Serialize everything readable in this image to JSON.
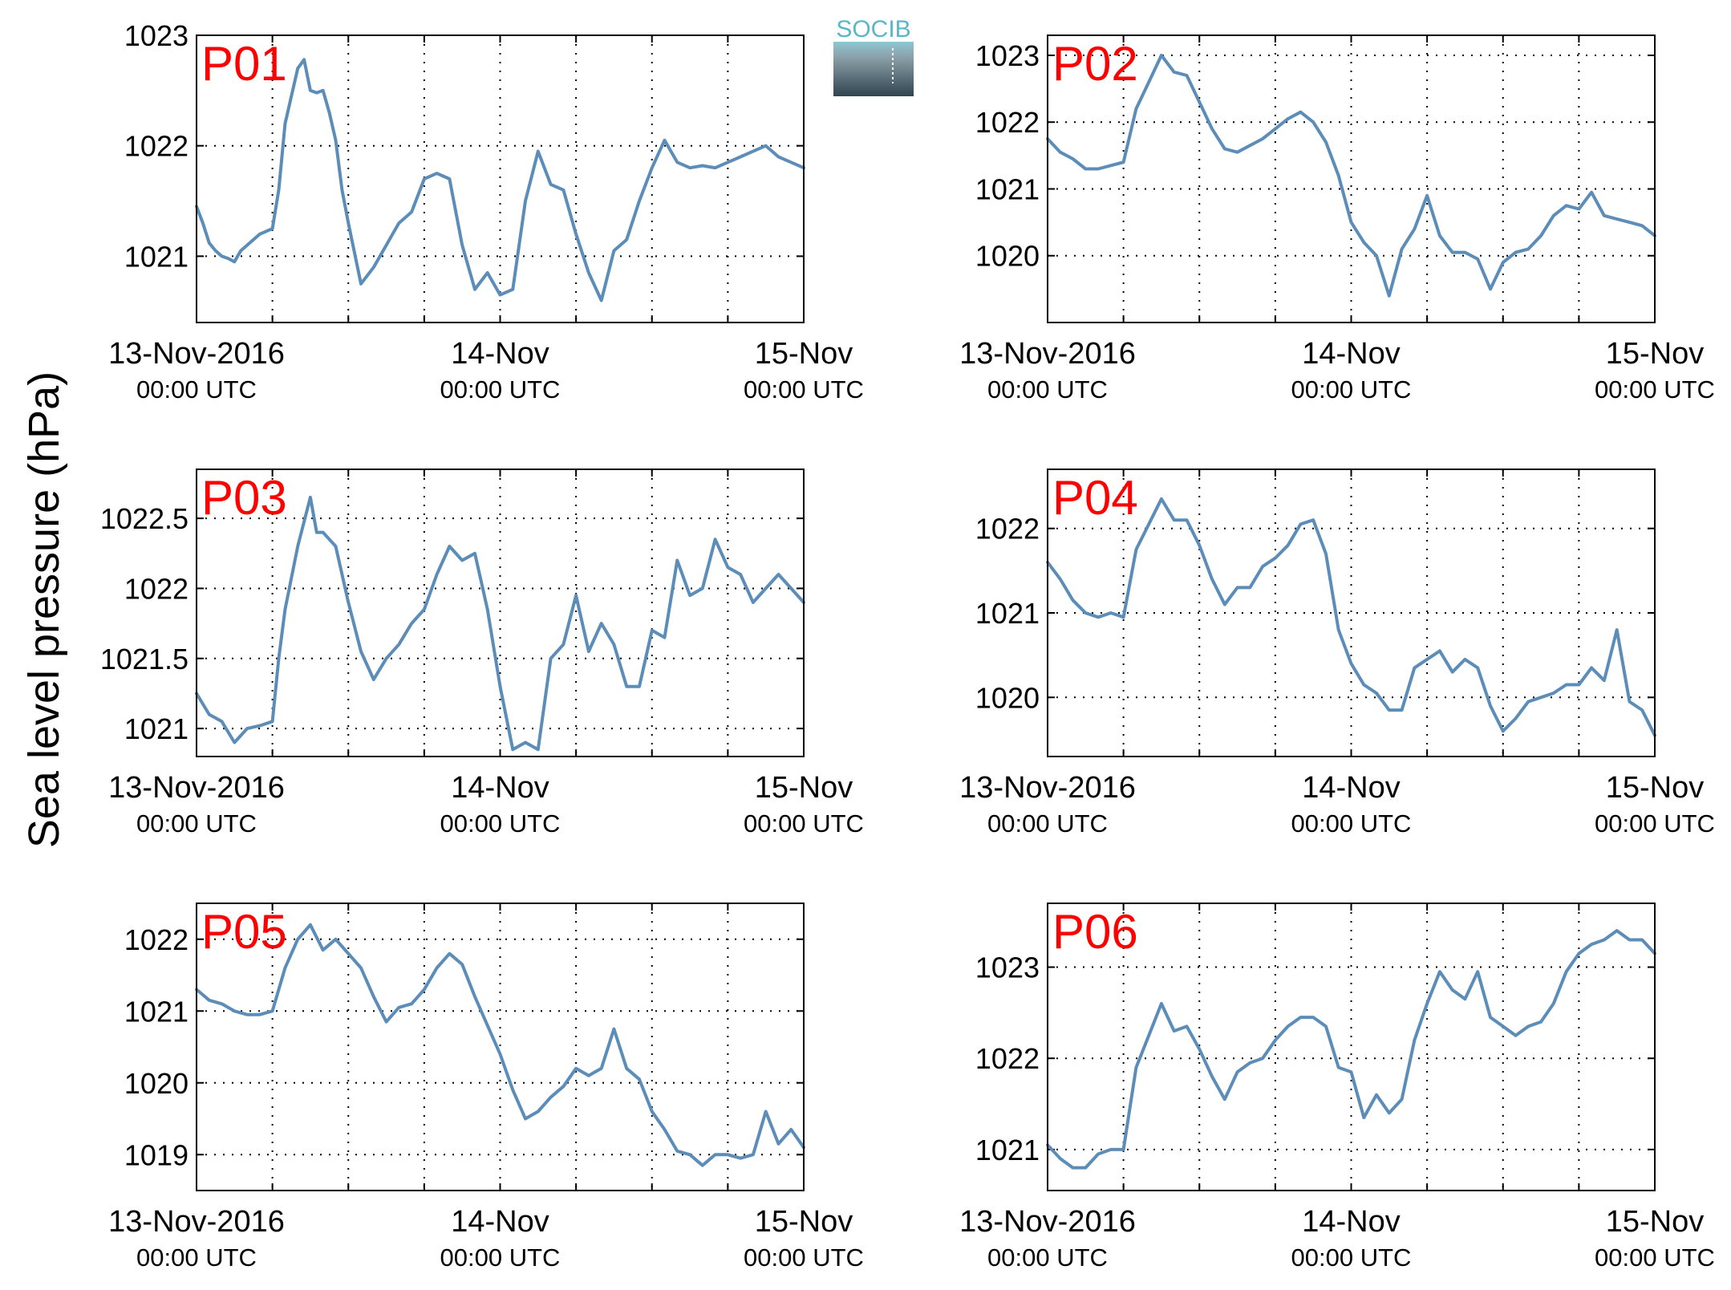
{
  "figure": {
    "ylabel": "Sea level pressure (hPa)",
    "logo_text": "SOCIB",
    "line_color": "#5b8db8",
    "label_color": "#ff0000",
    "grid": "dotted"
  },
  "chart_data": [
    {
      "type": "line",
      "label": "P01",
      "x_ticks": [
        "13-Nov-2016",
        "14-Nov",
        "15-Nov"
      ],
      "x_tick_sublabels": [
        "00:00 UTC",
        "00:00 UTC",
        "00:00 UTC"
      ],
      "x_unit": "hours since 13-Nov-2016 00:00 UTC",
      "xlim": [
        0,
        48
      ],
      "ylim": [
        1020.4,
        1023.0
      ],
      "yticks": [
        1021,
        1022,
        1023
      ],
      "ytick_labels": [
        "1021",
        "1022",
        "1023"
      ],
      "x": [
        0,
        0.5,
        1,
        1.5,
        2,
        2.5,
        3,
        3.5,
        4,
        5,
        6,
        6.5,
        7,
        7.5,
        8,
        8.5,
        9,
        9.5,
        10,
        10.5,
        11,
        11.5,
        12,
        13,
        14,
        14.5,
        15,
        15.5,
        16,
        17,
        18,
        19,
        20,
        21,
        22,
        23,
        24,
        25,
        26,
        27,
        28,
        29,
        30,
        31,
        32,
        33,
        34,
        35,
        36,
        37,
        38,
        39,
        40,
        41,
        42,
        43,
        44,
        45,
        46,
        47,
        48
      ],
      "y": [
        1021.45,
        1021.3,
        1021.12,
        1021.05,
        1021.0,
        1020.98,
        1020.95,
        1021.05,
        1021.1,
        1021.2,
        1021.25,
        1021.6,
        1022.2,
        1022.45,
        1022.7,
        1022.78,
        1022.5,
        1022.48,
        1022.5,
        1022.3,
        1022.05,
        1021.6,
        1021.3,
        1020.75,
        1020.9,
        1021.0,
        1021.1,
        1021.2,
        1021.3,
        1021.4,
        1021.7,
        1021.75,
        1021.7,
        1021.1,
        1020.7,
        1020.85,
        1020.65,
        1020.7,
        1021.5,
        1021.95,
        1021.65,
        1021.6,
        1021.2,
        1020.85,
        1020.6,
        1021.05,
        1021.15,
        1021.5,
        1021.8,
        1022.05,
        1021.85,
        1021.8,
        1021.82,
        1021.8,
        1021.85,
        1021.9,
        1021.95,
        1022.0,
        1021.9,
        1021.85,
        1021.8
      ]
    },
    {
      "type": "line",
      "label": "P02",
      "x_ticks": [
        "13-Nov-2016",
        "14-Nov",
        "15-Nov"
      ],
      "x_tick_sublabels": [
        "00:00 UTC",
        "00:00 UTC",
        "00:00 UTC"
      ],
      "x_unit": "hours since 13-Nov-2016 00:00 UTC",
      "xlim": [
        0,
        48
      ],
      "ylim": [
        1019.0,
        1023.3
      ],
      "yticks": [
        1020,
        1021,
        1022,
        1023
      ],
      "ytick_labels": [
        "1020",
        "1021",
        "1022",
        "1023"
      ],
      "x": [
        0,
        1,
        2,
        3,
        4,
        5,
        6,
        7,
        8,
        9,
        10,
        11,
        12,
        13,
        14,
        15,
        16,
        17,
        18,
        19,
        20,
        21,
        22,
        23,
        24,
        25,
        26,
        27,
        28,
        29,
        30,
        31,
        32,
        33,
        34,
        35,
        36,
        37,
        38,
        39,
        40,
        41,
        42,
        43,
        44,
        45,
        46,
        47,
        48
      ],
      "y": [
        1021.75,
        1021.55,
        1021.45,
        1021.3,
        1021.3,
        1021.35,
        1021.4,
        1022.2,
        1022.6,
        1023.0,
        1022.75,
        1022.7,
        1022.3,
        1021.9,
        1021.6,
        1021.55,
        1021.65,
        1021.75,
        1021.9,
        1022.05,
        1022.15,
        1022.0,
        1021.7,
        1021.2,
        1020.5,
        1020.2,
        1020.0,
        1019.4,
        1020.1,
        1020.4,
        1020.9,
        1020.3,
        1020.05,
        1020.05,
        1019.95,
        1019.5,
        1019.9,
        1020.05,
        1020.1,
        1020.3,
        1020.6,
        1020.75,
        1020.7,
        1020.95,
        1020.6,
        1020.55,
        1020.5,
        1020.45,
        1020.3
      ]
    },
    {
      "type": "line",
      "label": "P03",
      "x_ticks": [
        "13-Nov-2016",
        "14-Nov",
        "15-Nov"
      ],
      "x_tick_sublabels": [
        "00:00 UTC",
        "00:00 UTC",
        "00:00 UTC"
      ],
      "x_unit": "hours since 13-Nov-2016 00:00 UTC",
      "xlim": [
        0,
        48
      ],
      "ylim": [
        1020.8,
        1022.85
      ],
      "yticks": [
        1021,
        1021.5,
        1022,
        1022.5
      ],
      "ytick_labels": [
        "1021",
        "1021.5",
        "1022",
        "1022.5"
      ],
      "x": [
        0,
        1,
        2,
        3,
        4,
        5,
        6,
        6.5,
        7,
        8,
        9,
        9.5,
        10,
        11,
        12,
        13,
        14,
        15,
        16,
        17,
        18,
        19,
        20,
        21,
        22,
        23,
        24,
        25,
        26,
        27,
        28,
        29,
        30,
        31,
        32,
        33,
        34,
        35,
        36,
        37,
        38,
        39,
        40,
        41,
        42,
        43,
        44,
        45,
        46,
        47,
        48
      ],
      "y": [
        1021.25,
        1021.1,
        1021.05,
        1020.9,
        1021.0,
        1021.02,
        1021.05,
        1021.5,
        1021.85,
        1022.3,
        1022.65,
        1022.4,
        1022.4,
        1022.3,
        1021.9,
        1021.55,
        1021.35,
        1021.5,
        1021.6,
        1021.75,
        1021.85,
        1022.1,
        1022.3,
        1022.2,
        1022.25,
        1021.85,
        1021.3,
        1020.85,
        1020.9,
        1020.85,
        1021.5,
        1021.6,
        1021.95,
        1021.55,
        1021.75,
        1021.6,
        1021.3,
        1021.3,
        1021.7,
        1021.65,
        1022.2,
        1021.95,
        1022.0,
        1022.35,
        1022.15,
        1022.1,
        1021.9,
        1022.0,
        1022.1,
        1022.0,
        1021.9
      ]
    },
    {
      "type": "line",
      "label": "P04",
      "x_ticks": [
        "13-Nov-2016",
        "14-Nov",
        "15-Nov"
      ],
      "x_tick_sublabels": [
        "00:00 UTC",
        "00:00 UTC",
        "00:00 UTC"
      ],
      "x_unit": "hours since 13-Nov-2016 00:00 UTC",
      "xlim": [
        0,
        48
      ],
      "ylim": [
        1019.3,
        1022.7
      ],
      "yticks": [
        1020,
        1021,
        1022
      ],
      "ytick_labels": [
        "1020",
        "1021",
        "1022"
      ],
      "x": [
        0,
        1,
        2,
        3,
        4,
        5,
        6,
        7,
        8,
        9,
        10,
        11,
        12,
        13,
        14,
        15,
        16,
        17,
        18,
        19,
        20,
        21,
        22,
        23,
        24,
        25,
        26,
        27,
        28,
        29,
        30,
        31,
        32,
        33,
        34,
        35,
        36,
        37,
        38,
        39,
        40,
        41,
        42,
        43,
        44,
        45,
        46,
        47,
        48
      ],
      "y": [
        1021.6,
        1021.4,
        1021.15,
        1021.0,
        1020.95,
        1021.0,
        1020.95,
        1021.75,
        1022.05,
        1022.35,
        1022.1,
        1022.1,
        1021.8,
        1021.4,
        1021.1,
        1021.3,
        1021.3,
        1021.55,
        1021.65,
        1021.8,
        1022.05,
        1022.1,
        1021.7,
        1020.8,
        1020.4,
        1020.15,
        1020.05,
        1019.85,
        1019.85,
        1020.35,
        1020.45,
        1020.55,
        1020.3,
        1020.45,
        1020.35,
        1019.9,
        1019.6,
        1019.75,
        1019.95,
        1020.0,
        1020.05,
        1020.15,
        1020.15,
        1020.35,
        1020.2,
        1020.8,
        1019.95,
        1019.85,
        1019.55
      ]
    },
    {
      "type": "line",
      "label": "P05",
      "x_ticks": [
        "13-Nov-2016",
        "14-Nov",
        "15-Nov"
      ],
      "x_tick_sublabels": [
        "00:00 UTC",
        "00:00 UTC",
        "00:00 UTC"
      ],
      "x_unit": "hours since 13-Nov-2016 00:00 UTC",
      "xlim": [
        0,
        48
      ],
      "ylim": [
        1018.5,
        1022.5
      ],
      "yticks": [
        1019,
        1020,
        1021,
        1022
      ],
      "ytick_labels": [
        "1019",
        "1020",
        "1021",
        "1022"
      ],
      "x": [
        0,
        1,
        2,
        3,
        4,
        5,
        6,
        7,
        8,
        9,
        10,
        11,
        12,
        13,
        14,
        15,
        16,
        17,
        18,
        19,
        20,
        21,
        22,
        23,
        24,
        25,
        26,
        27,
        28,
        29,
        30,
        31,
        32,
        33,
        34,
        35,
        36,
        37,
        38,
        39,
        40,
        41,
        42,
        43,
        44,
        45,
        46,
        47,
        48
      ],
      "y": [
        1021.3,
        1021.15,
        1021.1,
        1021.0,
        1020.95,
        1020.95,
        1021.0,
        1021.6,
        1022.0,
        1022.2,
        1021.85,
        1022.0,
        1021.8,
        1021.6,
        1021.2,
        1020.85,
        1021.05,
        1021.1,
        1021.3,
        1021.6,
        1021.8,
        1021.65,
        1021.2,
        1020.8,
        1020.4,
        1019.9,
        1019.5,
        1019.6,
        1019.8,
        1019.95,
        1020.2,
        1020.1,
        1020.2,
        1020.75,
        1020.2,
        1020.05,
        1019.6,
        1019.35,
        1019.05,
        1019.0,
        1018.85,
        1019.0,
        1019.0,
        1018.95,
        1019.0,
        1019.6,
        1019.15,
        1019.35,
        1019.1
      ]
    },
    {
      "type": "line",
      "label": "P06",
      "x_ticks": [
        "13-Nov-2016",
        "14-Nov",
        "15-Nov"
      ],
      "x_tick_sublabels": [
        "00:00 UTC",
        "00:00 UTC",
        "00:00 UTC"
      ],
      "x_unit": "hours since 13-Nov-2016 00:00 UTC",
      "xlim": [
        0,
        48
      ],
      "ylim": [
        1020.55,
        1023.7
      ],
      "yticks": [
        1021,
        1022,
        1023
      ],
      "ytick_labels": [
        "1021",
        "1022",
        "1023"
      ],
      "x": [
        0,
        1,
        2,
        3,
        4,
        5,
        6,
        7,
        8,
        9,
        10,
        11,
        12,
        13,
        14,
        15,
        16,
        17,
        18,
        19,
        20,
        21,
        22,
        23,
        24,
        25,
        26,
        27,
        28,
        29,
        30,
        31,
        32,
        33,
        34,
        35,
        36,
        37,
        38,
        39,
        40,
        41,
        42,
        43,
        44,
        45,
        46,
        47,
        48
      ],
      "y": [
        1021.05,
        1020.9,
        1020.8,
        1020.8,
        1020.95,
        1021.0,
        1021.0,
        1021.9,
        1022.25,
        1022.6,
        1022.3,
        1022.35,
        1022.1,
        1021.8,
        1021.55,
        1021.85,
        1021.95,
        1022.0,
        1022.2,
        1022.35,
        1022.45,
        1022.45,
        1022.35,
        1021.9,
        1021.85,
        1021.35,
        1021.6,
        1021.4,
        1021.55,
        1022.2,
        1022.6,
        1022.95,
        1022.75,
        1022.65,
        1022.95,
        1022.45,
        1022.35,
        1022.25,
        1022.35,
        1022.4,
        1022.6,
        1022.95,
        1023.15,
        1023.25,
        1023.3,
        1023.4,
        1023.3,
        1023.3,
        1023.15
      ]
    }
  ]
}
